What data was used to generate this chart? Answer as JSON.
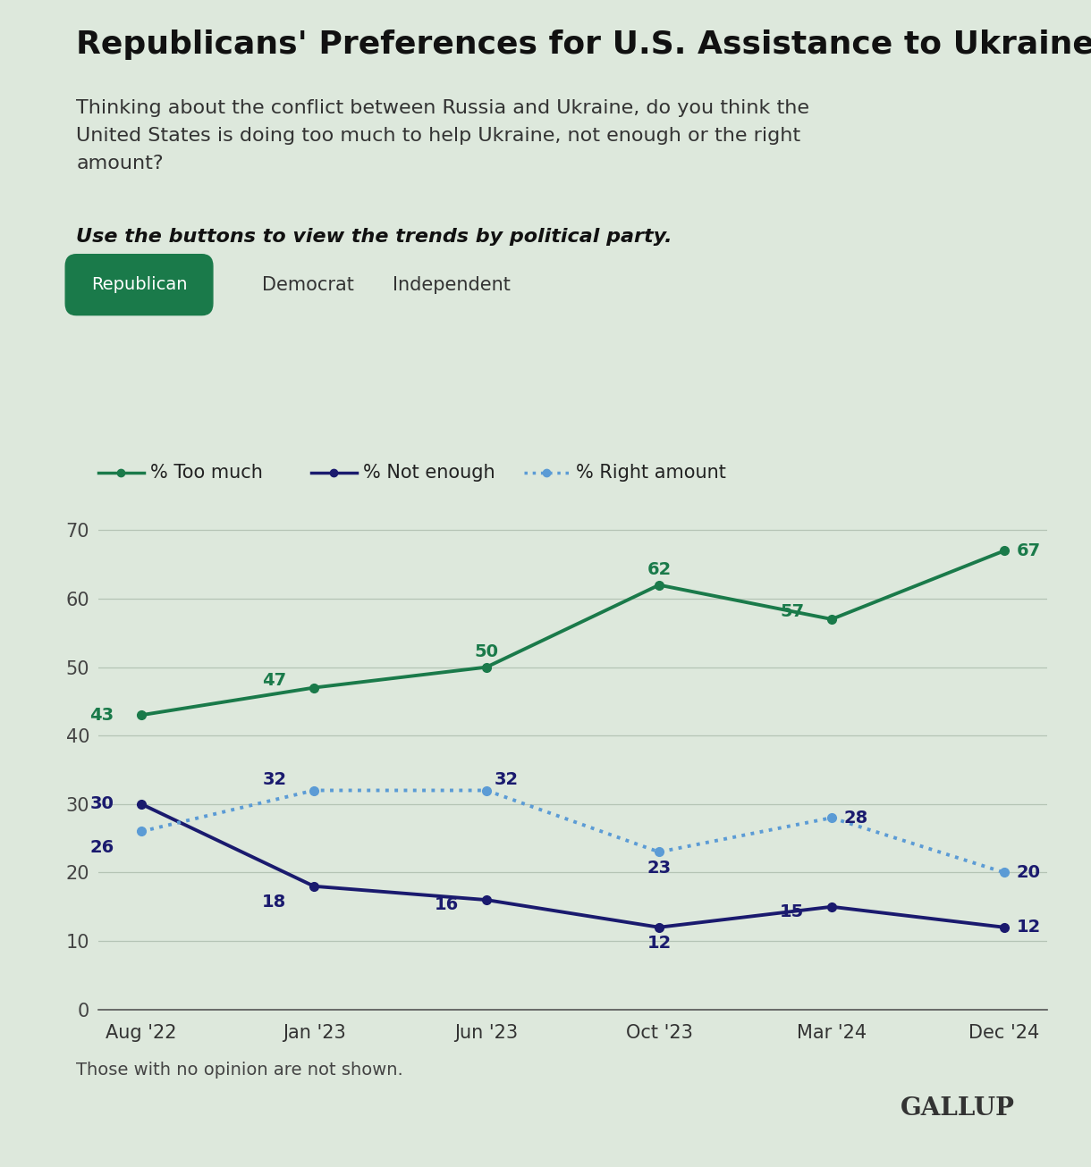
{
  "title": "Republicans' Preferences for U.S. Assistance to Ukraine",
  "subtitle": "Thinking about the conflict between Russia and Ukraine, do you think the\nUnited States is doing too much to help Ukraine, not enough or the right\namount?",
  "italic_note": "Use the buttons to view the trends by political party.",
  "party_buttons": [
    "Republican",
    "Democrat",
    "Independent"
  ],
  "button_color": "#1a7a4a",
  "button_text_color": "#ffffff",
  "background_color": "#dde8dc",
  "x_labels": [
    "Aug '22",
    "Jan '23",
    "Jun '23",
    "Oct '23",
    "Mar '24",
    "Dec '24"
  ],
  "too_much": [
    43,
    47,
    50,
    62,
    57,
    67
  ],
  "not_enough": [
    30,
    18,
    16,
    12,
    15,
    12
  ],
  "right_amount": [
    26,
    32,
    32,
    23,
    28,
    20
  ],
  "too_much_color": "#1a7a4a",
  "not_enough_color": "#1a1a6e",
  "right_amount_color": "#5b9bd5",
  "line_width": 2.8,
  "marker_size": 7,
  "ylim": [
    0,
    75
  ],
  "yticks": [
    0,
    10,
    20,
    30,
    40,
    50,
    60,
    70
  ],
  "footnote": "Those with no opinion are not shown.",
  "source": "GALLUP",
  "legend_too_much": "% Too much",
  "legend_not_enough": "% Not enough",
  "legend_right_amount": "% Right amount",
  "title_fontsize": 26,
  "subtitle_fontsize": 16,
  "italic_fontsize": 16,
  "axis_fontsize": 15,
  "label_fontsize": 14,
  "legend_fontsize": 15,
  "footnote_fontsize": 14
}
